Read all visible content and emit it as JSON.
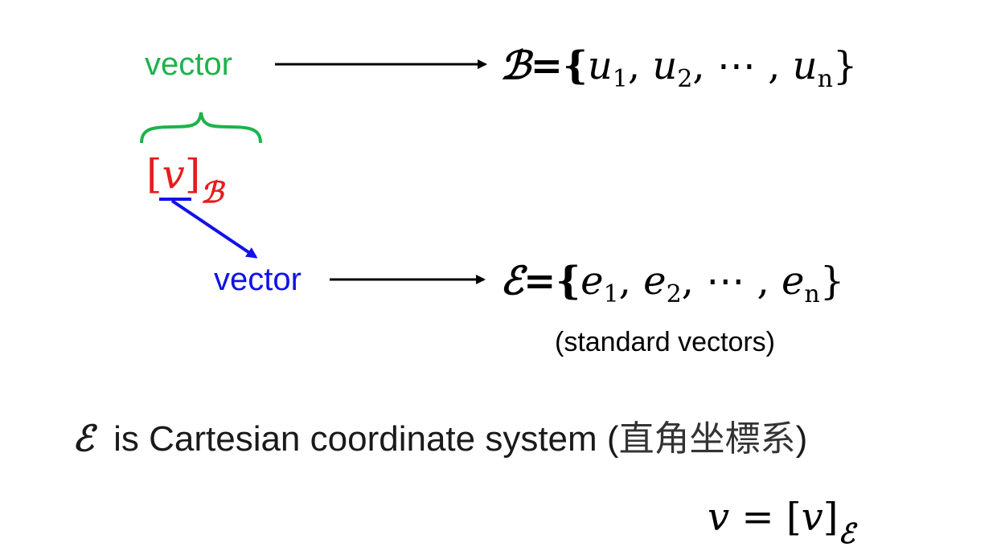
{
  "top_row": {
    "vector_label": "vector",
    "basis_symbol": "ℬ",
    "set_equals": "={",
    "elements": [
      {
        "base": "u",
        "sub": "1"
      },
      {
        "base": "u",
        "sub": "2"
      },
      {
        "base": "u",
        "sub": "n"
      }
    ],
    "dots": "⋯",
    "close": "}"
  },
  "coordinate": {
    "bracket_open": "[",
    "var": "v",
    "bracket_close": "]",
    "subscript": "ℬ"
  },
  "bottom_row": {
    "vector_label": "vector",
    "basis_symbol": "ℰ",
    "set_equals": "={",
    "elements": [
      {
        "base": "e",
        "sub": "1"
      },
      {
        "base": "e",
        "sub": "2"
      },
      {
        "base": "e",
        "sub": "n"
      }
    ],
    "dots": "⋯",
    "close": "}",
    "note": "(standard vectors)"
  },
  "statement": {
    "symbol": "ℰ",
    "text": "is Cartesian coordinate system (",
    "cjk": "直角坐標系",
    "close": ")"
  },
  "equation": {
    "lhs": "v",
    "eq": " = ",
    "bracket_open": "[",
    "var": "v",
    "bracket_close": "]",
    "subscript": "ℰ"
  },
  "colors": {
    "green": "#1db34a",
    "red": "#e81c1c",
    "blue": "#1212e6",
    "black": "#000000"
  }
}
